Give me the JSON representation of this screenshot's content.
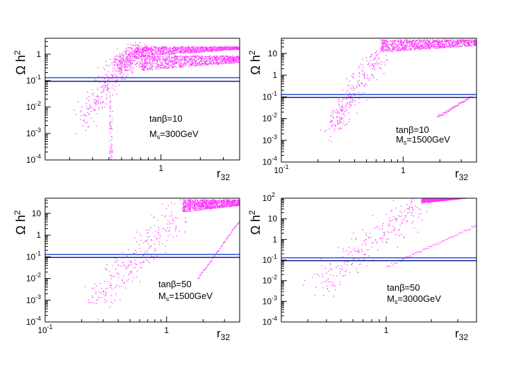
{
  "figure": {
    "description_free": true
  },
  "colors": {
    "points": "#ff33ff",
    "band_upper": "#3a5bd6",
    "band_lower": "#1f2f9a",
    "frame": "#000000"
  },
  "chart_data": [
    {
      "type": "scatter",
      "panel": "top-left",
      "title": "",
      "xlabel": "r_32",
      "xlabel_main": "r",
      "xlabel_sub": "32",
      "ylabel": "Ωh²",
      "ylabel_main": "Ω h",
      "ylabel_sup": "2",
      "xscale": "log",
      "yscale": "log",
      "xlim": [
        0.13,
        4.0
      ],
      "ylim": [
        0.0001,
        4.0
      ],
      "xticks": [
        {
          "v": 1,
          "label": "1"
        }
      ],
      "yticks": [
        {
          "v": 0.0001,
          "base": "10",
          "exp": "-4"
        },
        {
          "v": 0.001,
          "base": "10",
          "exp": "-3"
        },
        {
          "v": 0.01,
          "base": "10",
          "exp": "-2"
        },
        {
          "v": 0.1,
          "base": "10",
          "exp": "-1"
        },
        {
          "v": 1,
          "base": "1",
          "exp": ""
        }
      ],
      "annotations": [
        {
          "text": "tanβ=10",
          "legend_pos": "center-right-upper"
        },
        {
          "text": "M",
          "sub": "s",
          "rest": "=300GeV",
          "legend_pos": "center-right-lower"
        }
      ],
      "hbands": [
        0.094,
        0.129
      ],
      "branches": [
        {
          "name": "main",
          "x0": 0.25,
          "x1": 0.62,
          "y0": 0.004,
          "y1": 1.3,
          "xmax": 4.0,
          "ylo": 0.8,
          "yhi": 2.0,
          "spread": 0.25
        },
        {
          "name": "upper-plateau",
          "x0": 0.45,
          "x1": 0.7,
          "y0": 0.3,
          "y1": 1.5,
          "xmax": 4.0,
          "ylo": 0.25,
          "yhi": 0.9,
          "spread": 0.2
        }
      ],
      "tails": [
        {
          "x0": 0.4,
          "x1": 0.42,
          "y0": 0.0001,
          "y1": 0.03
        }
      ]
    },
    {
      "type": "scatter",
      "panel": "top-right",
      "title": "",
      "xlabel": "r_32",
      "xlabel_main": "r",
      "xlabel_sub": "32",
      "ylabel": "Ωh²",
      "ylabel_main": "Ω h",
      "ylabel_sup": "2",
      "xscale": "log",
      "yscale": "log",
      "xlim": [
        0.1,
        4.0
      ],
      "ylim": [
        0.0001,
        50
      ],
      "xticks": [
        {
          "v": 0.1,
          "label": "10",
          "exp": "-1"
        },
        {
          "v": 1,
          "label": "1"
        }
      ],
      "yticks": [
        {
          "v": 0.0001,
          "base": "10",
          "exp": "-4"
        },
        {
          "v": 0.001,
          "base": "10",
          "exp": "-3"
        },
        {
          "v": 0.01,
          "base": "10",
          "exp": "-2"
        },
        {
          "v": 0.1,
          "base": "10",
          "exp": "-1"
        },
        {
          "v": 1,
          "base": "1",
          "exp": ""
        },
        {
          "v": 10,
          "base": "10",
          "exp": ""
        }
      ],
      "annotations": [
        {
          "text": "tanβ=10",
          "legend_pos": "center-right-upper"
        },
        {
          "text": "M",
          "sub": "s",
          "rest": "=1500GeV",
          "legend_pos": "center-right-lower"
        }
      ],
      "hbands": [
        0.094,
        0.129
      ],
      "branches": [
        {
          "name": "main",
          "x0": 0.25,
          "x1": 0.65,
          "y0": 0.003,
          "y1": 13,
          "xmax": 4.0,
          "ylo": 12,
          "yhi": 45,
          "spread": 0.3
        }
      ],
      "lines": [
        {
          "x0": 1.9,
          "y0": 0.012,
          "x1": 3.7,
          "y1": 0.12
        }
      ]
    },
    {
      "type": "scatter",
      "panel": "bottom-left",
      "title": "",
      "xlabel": "r_32",
      "xlabel_main": "r",
      "xlabel_sub": "32",
      "ylabel": "Ωh²",
      "ylabel_main": "Ω h",
      "ylabel_sup": "2",
      "xscale": "log",
      "yscale": "log",
      "xlim": [
        0.1,
        4.0
      ],
      "ylim": [
        0.0001,
        50
      ],
      "xticks": [
        {
          "v": 0.1,
          "label": "10",
          "exp": "-1"
        },
        {
          "v": 1,
          "label": "1"
        }
      ],
      "yticks": [
        {
          "v": 0.0001,
          "base": "10",
          "exp": "-4"
        },
        {
          "v": 0.001,
          "base": "10",
          "exp": "-3"
        },
        {
          "v": 0.01,
          "base": "10",
          "exp": "-2"
        },
        {
          "v": 0.1,
          "base": "10",
          "exp": "-1"
        },
        {
          "v": 1,
          "base": "1",
          "exp": ""
        },
        {
          "v": 10,
          "base": "10",
          "exp": ""
        }
      ],
      "annotations": [
        {
          "text": "tanβ=50",
          "legend_pos": "lower-center-right"
        },
        {
          "text": "M",
          "sub": "s",
          "rest": "=1500GeV",
          "legend_pos": "lower-center-right"
        }
      ],
      "hbands": [
        0.094,
        0.129
      ],
      "branches": [
        {
          "name": "main",
          "x0": 0.25,
          "x1": 1.35,
          "y0": 0.001,
          "y1": 13,
          "xmax": 4.0,
          "ylo": 12,
          "yhi": 45,
          "spread": 0.45
        }
      ],
      "lines": [
        {
          "x0": 1.8,
          "y0": 0.01,
          "x1": 4.0,
          "y1": 5
        }
      ]
    },
    {
      "type": "scatter",
      "panel": "bottom-right",
      "title": "",
      "xlabel": "r_32",
      "xlabel_main": "r",
      "xlabel_sub": "32",
      "ylabel": "Ωh²",
      "ylabel_main": "Ω h",
      "ylabel_sup": "2",
      "xscale": "log",
      "yscale": "log",
      "xlim": [
        0.2,
        4.0
      ],
      "ylim": [
        0.0001,
        100
      ],
      "xticks": [
        {
          "v": 1,
          "label": "1"
        }
      ],
      "yticks": [
        {
          "v": 0.0001,
          "base": "10",
          "exp": "-4"
        },
        {
          "v": 0.001,
          "base": "10",
          "exp": "-3"
        },
        {
          "v": 0.01,
          "base": "10",
          "exp": "-2"
        },
        {
          "v": 0.1,
          "base": "10",
          "exp": "-1"
        },
        {
          "v": 1,
          "base": "1",
          "exp": ""
        },
        {
          "v": 10,
          "base": "10",
          "exp": ""
        },
        {
          "v": 100,
          "base": "10",
          "exp": "2"
        }
      ],
      "annotations": [
        {
          "text": "tanβ=50",
          "legend_pos": "lower-center-right"
        },
        {
          "text": "M",
          "sub": "s",
          "rest": "=3000GeV",
          "legend_pos": "lower-center-right"
        }
      ],
      "hbands": [
        0.094,
        0.129
      ],
      "branches": [
        {
          "name": "main",
          "x0": 0.35,
          "x1": 1.7,
          "y0": 0.005,
          "y1": 80,
          "xmax": 4.0,
          "ylo": 60,
          "yhi": 100,
          "spread": 0.4
        }
      ],
      "lines": [
        {
          "x0": 1.0,
          "y0": 0.05,
          "x1": 4.0,
          "y1": 5
        }
      ]
    }
  ]
}
